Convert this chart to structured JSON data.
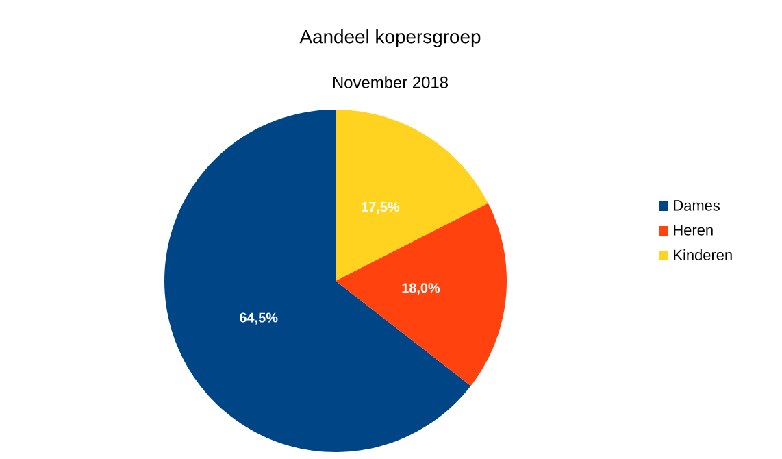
{
  "chart_data": {
    "type": "pie",
    "title": "Aandeel kopersgroep",
    "subtitle": "November 2018",
    "categories": [
      "Dames",
      "Heren",
      "Kinderen"
    ],
    "values": [
      64.5,
      18.0,
      17.5
    ],
    "colors": [
      "#004586",
      "#ff420e",
      "#ffd320"
    ],
    "value_labels": [
      "64,5%",
      "18,0%",
      "17,5%"
    ],
    "legend": "right"
  }
}
